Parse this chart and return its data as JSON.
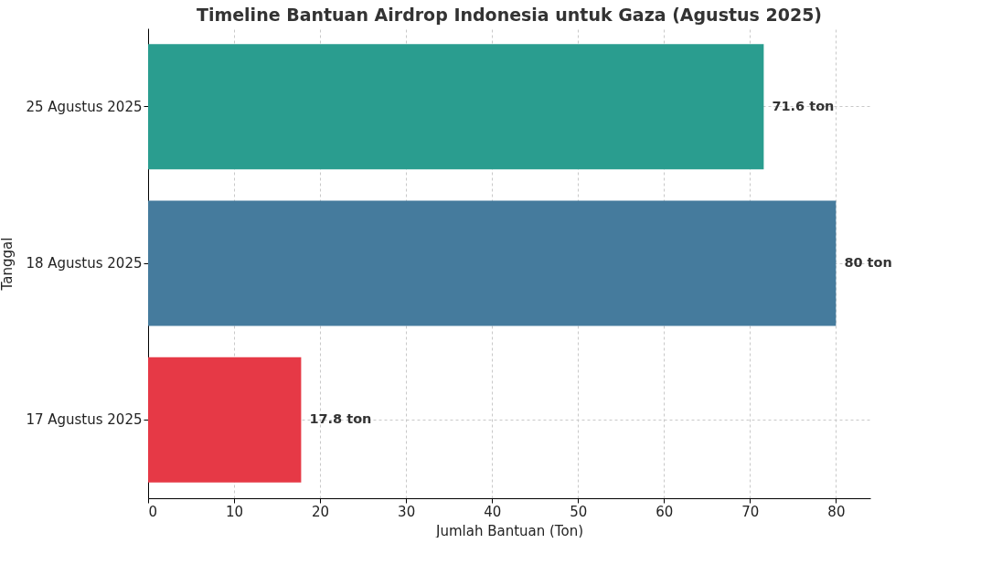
{
  "chart_data": {
    "type": "bar",
    "orientation": "horizontal",
    "title": "Timeline Bantuan Airdrop Indonesia untuk Gaza (Agustus 2025)",
    "xlabel": "Jumlah Bantuan (Ton)",
    "ylabel": "Tanggal",
    "categories": [
      "25 Agustus 2025",
      "18 Agustus 2025",
      "17 Agustus 2025"
    ],
    "values": [
      71.6,
      80,
      17.8
    ],
    "colors": [
      "#2a9d8f",
      "#457b9d",
      "#e63946"
    ],
    "value_labels": [
      "71.6 ton",
      "80 ton",
      "17.8 ton"
    ],
    "xlim": [
      0,
      84
    ],
    "xticks": [
      0,
      10,
      20,
      30,
      40,
      50,
      60,
      70,
      80
    ],
    "grid": true
  }
}
